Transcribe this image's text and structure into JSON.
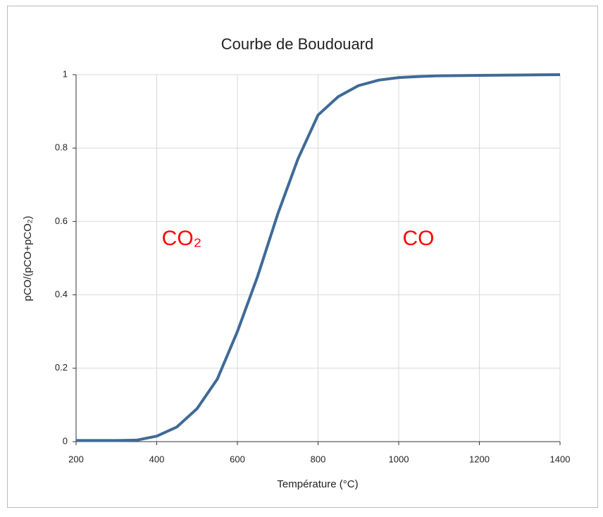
{
  "chart_data": {
    "type": "line",
    "title": "Courbe de Boudouard",
    "x_label": "Température (°C)",
    "y_label": "pCO/(pCO+pCO₂)",
    "x": [
      200,
      250,
      300,
      350,
      400,
      450,
      500,
      550,
      600,
      650,
      700,
      750,
      800,
      850,
      900,
      950,
      1000,
      1050,
      1100,
      1200,
      1300,
      1400
    ],
    "series": [
      {
        "name": "pCO/(pCO+pCO₂)",
        "color": "#3f6a97",
        "values": [
          0.003,
          0.003,
          0.003,
          0.004,
          0.015,
          0.04,
          0.09,
          0.17,
          0.3,
          0.45,
          0.62,
          0.77,
          0.89,
          0.94,
          0.97,
          0.985,
          0.992,
          0.995,
          0.997,
          0.998,
          0.999,
          1.0
        ]
      }
    ],
    "xlim": [
      200,
      1400
    ],
    "xticks": [
      200,
      400,
      600,
      800,
      1000,
      1200,
      1400
    ],
    "ylim": [
      0,
      1
    ],
    "yticks": [
      0,
      0.2,
      0.4,
      0.6,
      0.8,
      1
    ],
    "grid": true,
    "annotations": [
      {
        "text": "CO₂",
        "color": "#ff0000"
      },
      {
        "text": "CO",
        "color": "#ff0000"
      }
    ]
  }
}
